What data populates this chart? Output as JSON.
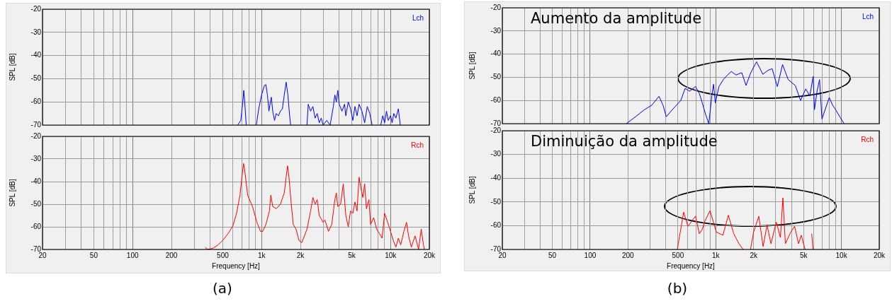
{
  "chart_data": [
    {
      "type": "line",
      "ylabel": "SPL [dB]",
      "log": "x",
      "grid": true,
      "legend": "top right",
      "tick_labels": "y",
      "xlim": [
        20,
        20000
      ],
      "ylim": [
        -70,
        -20
      ],
      "yticks": [
        -20,
        -30,
        -40,
        -50,
        -60,
        -70
      ],
      "xticks": [
        {
          "value": 20,
          "label": null
        },
        {
          "value": 30,
          "label": null
        },
        {
          "value": 40,
          "label": null
        },
        {
          "value": 50,
          "label": null
        },
        {
          "value": 60,
          "label": null
        },
        {
          "value": 70,
          "label": null
        },
        {
          "value": 80,
          "label": null
        },
        {
          "value": 90,
          "label": null
        },
        {
          "value": 100,
          "label": null
        },
        {
          "value": 200,
          "label": null
        },
        {
          "value": 300,
          "label": null
        },
        {
          "value": 400,
          "label": null
        },
        {
          "value": 500,
          "label": null
        },
        {
          "value": 600,
          "label": null
        },
        {
          "value": 700,
          "label": null
        },
        {
          "value": 800,
          "label": null
        },
        {
          "value": 900,
          "label": null
        },
        {
          "value": 1000,
          "label": null
        },
        {
          "value": 2000,
          "label": null
        },
        {
          "value": 3000,
          "label": null
        },
        {
          "value": 4000,
          "label": null
        },
        {
          "value": 5000,
          "label": null
        },
        {
          "value": 6000,
          "label": null
        },
        {
          "value": 7000,
          "label": null
        },
        {
          "value": 8000,
          "label": null
        },
        {
          "value": 9000,
          "label": null
        },
        {
          "value": 10000,
          "label": null
        },
        {
          "value": 20000,
          "label": null
        }
      ],
      "series": [
        {
          "name": "Lch",
          "color": "#0000ff",
          "x": [
            652,
            690,
            715,
            727,
            740,
            760,
            830,
            910,
            950,
            1000,
            1050,
            1080,
            1110,
            1140,
            1170,
            1190,
            1220,
            1260,
            1300,
            1350,
            1400,
            1450,
            1500,
            1550,
            1600,
            1650,
            1680,
            1900,
            2250,
            2300,
            2400,
            2500,
            2600,
            2700,
            2800,
            2900,
            3000,
            3200,
            3400,
            3500,
            3600,
            3700,
            3800,
            3900,
            4000,
            4200,
            4400,
            4500,
            4700,
            4900,
            5100,
            5300,
            5500,
            5700,
            6000,
            6300,
            6600,
            6900,
            7200,
            7800,
            8400,
            8700,
            9000,
            9300,
            9600,
            10000,
            10300,
            10600,
            11000,
            11500,
            11900
          ],
          "values": [
            -70,
            -68,
            -60,
            -55,
            -60,
            -70,
            null,
            -70,
            -63,
            -57,
            -53,
            -52.5,
            -57,
            -64,
            -60,
            -58,
            -64,
            -68,
            -65,
            -66,
            -64,
            -63,
            -57,
            -51.5,
            -57,
            -66,
            -70,
            null,
            -70,
            -61,
            -64,
            -62,
            -67,
            -65,
            -69,
            -67,
            -70,
            -68,
            -70,
            -66,
            -62,
            -57,
            -60,
            -55,
            -61,
            -64,
            -61,
            -66,
            -60,
            -63,
            -68,
            -62,
            -66,
            -61,
            -64,
            -69,
            -62,
            -65,
            -70,
            null,
            -70,
            -66,
            -69,
            -64,
            -68,
            -66,
            -69,
            -65,
            -67,
            -63,
            -70
          ]
        }
      ]
    },
    {
      "type": "line",
      "xlabel": "Frequency [Hz]",
      "ylabel": "SPL [dB]",
      "log": "x",
      "grid": true,
      "legend": "top right",
      "xlim": [
        20,
        20000
      ],
      "ylim": [
        -70,
        -20
      ],
      "yticks": [
        -20,
        -30,
        -40,
        -50,
        -60,
        -70
      ],
      "xticks": [
        20,
        {
          "value": 30,
          "label": null
        },
        {
          "value": 40,
          "label": null
        },
        50,
        {
          "value": 60,
          "label": null
        },
        {
          "value": 70,
          "label": null
        },
        {
          "value": 80,
          "label": null
        },
        {
          "value": 90,
          "label": null
        },
        100,
        200,
        {
          "value": 300,
          "label": null
        },
        {
          "value": 400,
          "label": null
        },
        500,
        {
          "value": 600,
          "label": null
        },
        {
          "value": 700,
          "label": null
        },
        {
          "value": 800,
          "label": null
        },
        {
          "value": 900,
          "label": null
        },
        {
          "value": 1000,
          "label": "1k"
        },
        {
          "value": 2000,
          "label": "2k"
        },
        {
          "value": 3000,
          "label": null
        },
        {
          "value": 4000,
          "label": null
        },
        {
          "value": 5000,
          "label": "5k"
        },
        {
          "value": 6000,
          "label": null
        },
        {
          "value": 7000,
          "label": null
        },
        {
          "value": 8000,
          "label": null
        },
        {
          "value": 9000,
          "label": null
        },
        {
          "value": 10000,
          "label": "10k"
        },
        {
          "value": 20000,
          "label": "20k"
        }
      ],
      "annotations": [
        "(a)"
      ],
      "series": [
        {
          "name": "Rch",
          "color": "#ff0000",
          "x": [
            365,
            380,
            420,
            460,
            500,
            550,
            600,
            640,
            680,
            710,
            725,
            740,
            780,
            850,
            920,
            980,
            1020,
            1080,
            1150,
            1180,
            1220,
            1300,
            1400,
            1500,
            1550,
            1590,
            1630,
            1700,
            1760,
            1850,
            1950,
            2050,
            2150,
            2250,
            2400,
            2500,
            2600,
            2700,
            2800,
            3000,
            3100,
            3300,
            3500,
            3700,
            3800,
            3900,
            4100,
            4300,
            4500,
            4700,
            4900,
            5100,
            5300,
            5500,
            5700,
            5900,
            6100,
            6300,
            6500,
            6800,
            7000,
            7400,
            7800,
            8200,
            8600,
            9000,
            9500,
            10000,
            10500,
            11000,
            11500,
            12000,
            12700,
            13300,
            13800,
            14500,
            15500,
            16500,
            17300,
            18000,
            18300
          ],
          "values": [
            -69,
            -70,
            -69.5,
            -68,
            -66,
            -63,
            -59.5,
            -54,
            -46,
            -36,
            -32,
            -35,
            -46,
            -51,
            -58,
            -62,
            -62,
            -59,
            -53,
            -46,
            -51,
            -52,
            -50,
            -45,
            -38,
            -33,
            -38,
            -50,
            -59,
            -61,
            -66,
            -67,
            -64,
            -61,
            -53,
            -47,
            -50,
            -48,
            -55,
            -58,
            -57,
            -62,
            -59,
            -48,
            -45,
            -51,
            -50,
            -41,
            -55,
            -60,
            -53,
            -54,
            -49,
            -53,
            -38,
            -43,
            -47,
            -41,
            -52,
            -48,
            -59,
            -56,
            -61,
            -63,
            -65,
            -54,
            -58,
            -62,
            -66,
            -69,
            -65,
            -68,
            -62,
            -58,
            -64,
            -69,
            -64,
            -70,
            -61,
            -68,
            -70
          ]
        }
      ]
    },
    {
      "type": "line",
      "ylabel": "SPL [dB]",
      "log": "x",
      "grid": true,
      "legend": "top right",
      "tick_labels": "y",
      "xlim": [
        20,
        20000
      ],
      "ylim": [
        -70,
        -20
      ],
      "yticks": [
        -20,
        -30,
        -40,
        -50,
        -60,
        -70
      ],
      "xticks": [
        {
          "value": 20,
          "label": null
        },
        {
          "value": 30,
          "label": null
        },
        {
          "value": 40,
          "label": null
        },
        {
          "value": 50,
          "label": null
        },
        {
          "value": 60,
          "label": null
        },
        {
          "value": 70,
          "label": null
        },
        {
          "value": 80,
          "label": null
        },
        {
          "value": 90,
          "label": null
        },
        {
          "value": 100,
          "label": null
        },
        {
          "value": 200,
          "label": null
        },
        {
          "value": 300,
          "label": null
        },
        {
          "value": 400,
          "label": null
        },
        {
          "value": 500,
          "label": null
        },
        {
          "value": 600,
          "label": null
        },
        {
          "value": 700,
          "label": null
        },
        {
          "value": 800,
          "label": null
        },
        {
          "value": 900,
          "label": null
        },
        {
          "value": 1000,
          "label": null
        },
        {
          "value": 2000,
          "label": null
        },
        {
          "value": 3000,
          "label": null
        },
        {
          "value": 4000,
          "label": null
        },
        {
          "value": 5000,
          "label": null
        },
        {
          "value": 6000,
          "label": null
        },
        {
          "value": 7000,
          "label": null
        },
        {
          "value": 8000,
          "label": null
        },
        {
          "value": 9000,
          "label": null
        },
        {
          "value": 10000,
          "label": null
        },
        {
          "value": 20000,
          "label": null
        }
      ],
      "annotations": [
        "Aumento da amplitude"
      ],
      "series": [
        {
          "name": "Lch",
          "color": "#0000ff",
          "x": [
            194,
            230,
            270,
            310,
            353,
            380,
            404,
            450,
            527,
            570,
            620,
            689,
            740,
            780,
            830,
            880,
            930,
            960,
            991,
            1060,
            1148,
            1240,
            1330,
            1450,
            1610,
            1740,
            1900,
            2110,
            2370,
            2600,
            2810,
            3090,
            3400,
            3770,
            4300,
            4730,
            5200,
            5600,
            5960,
            6100,
            6400,
            6700,
            7000,
            8000,
            8500,
            9000,
            9700,
            10500
          ],
          "values": [
            -70,
            -67,
            -64,
            -62,
            -58.2,
            -62,
            -67,
            -64,
            -60,
            -54.8,
            -56,
            -54,
            -57,
            -61,
            -66,
            -70,
            -58,
            -53,
            -61,
            -54,
            -51,
            -49,
            -47.5,
            -49,
            -48,
            -53.5,
            -48,
            -43.3,
            -48.7,
            -47,
            -46.3,
            -54,
            -44.5,
            -51,
            -53.6,
            -60,
            -55,
            -58,
            -49.6,
            -64,
            -56,
            -51,
            -68,
            -58.7,
            -62,
            -64,
            -67,
            -70
          ]
        }
      ]
    },
    {
      "type": "line",
      "xlabel": "Frequency [Hz]",
      "ylabel": "SPL [dB]",
      "log": "x",
      "grid": true,
      "legend": "top right",
      "xlim": [
        20,
        20000
      ],
      "ylim": [
        -70,
        -20
      ],
      "yticks": [
        -20,
        -30,
        -40,
        -50,
        -60,
        -70
      ],
      "xticks": [
        20,
        {
          "value": 30,
          "label": null
        },
        {
          "value": 40,
          "label": null
        },
        50,
        {
          "value": 60,
          "label": null
        },
        {
          "value": 70,
          "label": null
        },
        {
          "value": 80,
          "label": null
        },
        {
          "value": 90,
          "label": null
        },
        100,
        200,
        {
          "value": 300,
          "label": null
        },
        {
          "value": 400,
          "label": null
        },
        500,
        {
          "value": 600,
          "label": null
        },
        {
          "value": 700,
          "label": null
        },
        {
          "value": 800,
          "label": null
        },
        {
          "value": 900,
          "label": null
        },
        {
          "value": 1000,
          "label": "1k"
        },
        {
          "value": 2000,
          "label": "2k"
        },
        {
          "value": 3000,
          "label": null
        },
        {
          "value": 4000,
          "label": null
        },
        {
          "value": 5000,
          "label": "5k"
        },
        {
          "value": 6000,
          "label": null
        },
        {
          "value": 7000,
          "label": null
        },
        {
          "value": 8000,
          "label": null
        },
        {
          "value": 9000,
          "label": null
        },
        {
          "value": 10000,
          "label": "10k"
        },
        {
          "value": 20000,
          "label": "20k"
        }
      ],
      "annotations": [
        "Diminuição da amplitude",
        "(b)"
      ],
      "series": [
        {
          "name": "Rch",
          "color": "#ff0000",
          "x": [
            494,
            555,
            600,
            690,
            740,
            780,
            820,
            900,
            1010,
            1140,
            1260,
            1390,
            1530,
            1650,
            1770,
            1890,
            2000,
            2200,
            2380,
            2560,
            2750,
            3030,
            3270,
            3420,
            3580,
            3950,
            4240,
            4560,
            4790,
            5140,
            5500,
            5800,
            5940
          ],
          "values": [
            -70,
            -54.3,
            -60.3,
            -56,
            -63.4,
            -61.6,
            -58,
            -53.7,
            -62.7,
            -64,
            -55.6,
            -63.4,
            -67.6,
            -70,
            null,
            -70,
            -62.7,
            -56,
            -68.8,
            -59.7,
            -67.6,
            -58.5,
            -65,
            -48.3,
            -67.6,
            -62.7,
            -60.3,
            -67.6,
            -64,
            -70,
            null,
            -63.4,
            -70
          ]
        }
      ]
    }
  ]
}
